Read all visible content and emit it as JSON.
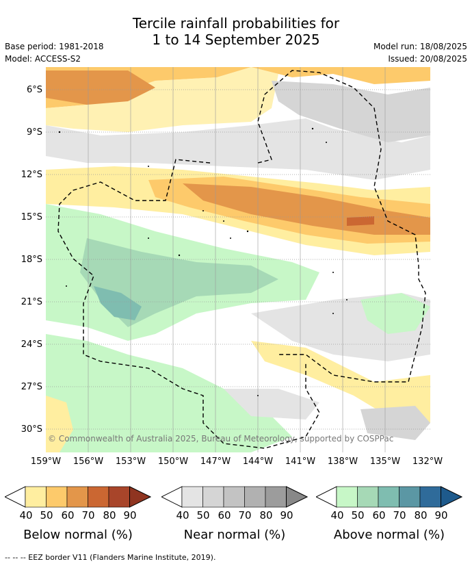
{
  "title_line1": "Tercile rainfall probabilities for",
  "title_line2": "1 to 14 September 2025",
  "base_period": "Base period: 1981-2018",
  "model": "Model: ACCESS-S2",
  "model_run": "Model run: 18/08/2025",
  "issued": "Issued: 20/08/2025",
  "lat_labels": [
    "6°S",
    "9°S",
    "12°S",
    "15°S",
    "18°S",
    "21°S",
    "24°S",
    "27°S",
    "30°S"
  ],
  "lon_labels": [
    "159°W",
    "156°W",
    "153°W",
    "150°W",
    "147°W",
    "144°W",
    "141°W",
    "138°W",
    "135°W",
    "132°W"
  ],
  "credit": "© Commonwealth of Australia 2025, Bureau of Meteorology, supported by COSPPac",
  "colorbars": [
    {
      "label": "Below normal (%)",
      "ticks": [
        "40",
        "50",
        "60",
        "70",
        "80",
        "90"
      ],
      "colors": [
        "#ffeea0",
        "#fdca6b",
        "#e3964a",
        "#cb6732",
        "#a8452a"
      ]
    },
    {
      "label": "Near normal (%)",
      "ticks": [
        "40",
        "50",
        "60",
        "70",
        "80",
        "90"
      ],
      "colors": [
        "#e4e4e4",
        "#d5d5d5",
        "#c3c3c3",
        "#b1b1b1",
        "#9c9c9c"
      ]
    },
    {
      "label": "Above normal (%)",
      "ticks": [
        "40",
        "50",
        "60",
        "70",
        "80",
        "90"
      ],
      "colors": [
        "#c7f7c7",
        "#a6d9b6",
        "#7fbdb0",
        "#5b97a4",
        "#2f6b9a"
      ]
    }
  ],
  "colorbar_arrow_colors": {
    "below": "#8f3420",
    "near": "#888888",
    "above": "#1e5a8c"
  },
  "footer": "--  --  -- EEZ border V11 (Flanders Marine Institute, 2019)."
}
